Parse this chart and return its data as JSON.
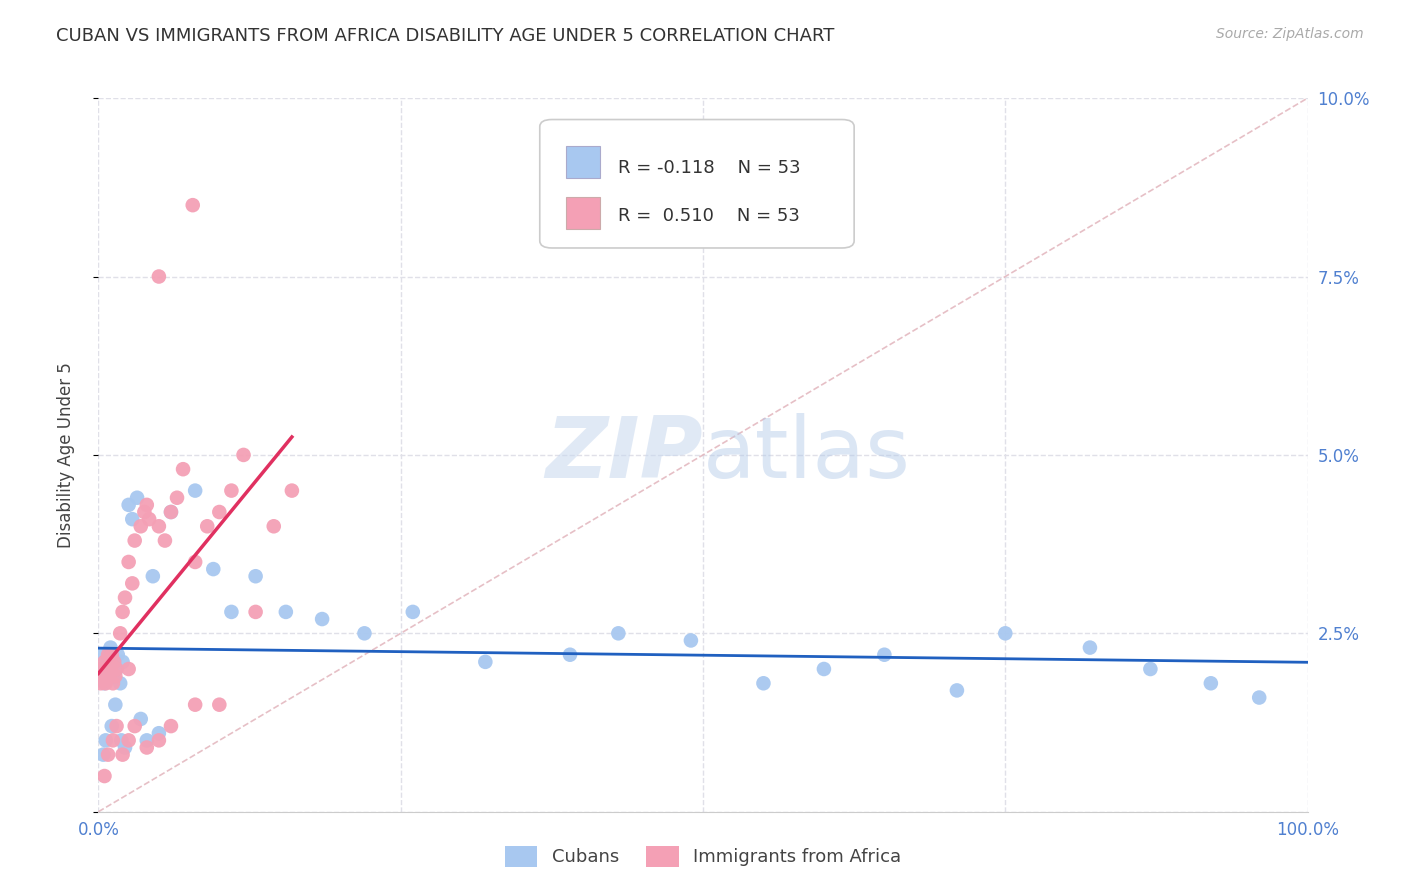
{
  "title": "CUBAN VS IMMIGRANTS FROM AFRICA DISABILITY AGE UNDER 5 CORRELATION CHART",
  "source": "Source: ZipAtlas.com",
  "ylabel": "Disability Age Under 5",
  "xlim": [
    0.0,
    1.0
  ],
  "ylim": [
    0.0,
    0.1
  ],
  "xtick_vals": [
    0.0,
    0.25,
    0.5,
    0.75,
    1.0
  ],
  "xtick_labels": [
    "0.0%",
    "",
    "",
    "",
    "100.0%"
  ],
  "ytick_vals": [
    0.0,
    0.025,
    0.05,
    0.075,
    0.1
  ],
  "ytick_labels": [
    "",
    "2.5%",
    "5.0%",
    "7.5%",
    "10.0%"
  ],
  "legend_labels": [
    "Cubans",
    "Immigrants from Africa"
  ],
  "blue_color": "#a8c8f0",
  "pink_color": "#f4a0b5",
  "blue_line_color": "#2060c0",
  "pink_line_color": "#e03060",
  "diagonal_color": "#e0b0b8",
  "r_blue": -0.118,
  "r_pink": 0.51,
  "n_blue": 53,
  "n_pink": 53,
  "watermark_zip": "ZIP",
  "watermark_atlas": "atlas",
  "background_color": "#ffffff",
  "grid_color": "#e0e0e8",
  "tick_color": "#5080d0",
  "title_color": "#333333",
  "source_color": "#aaaaaa",
  "ylabel_color": "#444444"
}
